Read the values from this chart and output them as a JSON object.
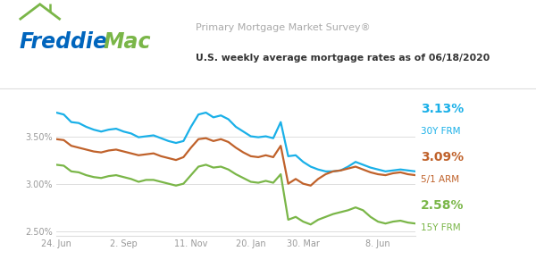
{
  "title_survey": "Primary Mortgage Market Survey®",
  "title_sub": "U.S. weekly average mortgage rates as of 06/18/2020",
  "label_30y_pct": "3.13%",
  "label_30y_name": "30Y FRM",
  "label_5arm_pct": "3.09%",
  "label_5arm_name": "5/1 ARM",
  "label_15y_pct": "2.58%",
  "label_15y_name": "15Y FRM",
  "color_30y": "#1ab0e8",
  "color_5arm": "#c0622b",
  "color_15y": "#7ab648",
  "color_freddie_blue": "#0065bd",
  "color_freddie_green": "#7ab648",
  "color_title_gray": "#aaaaaa",
  "color_subtitle": "#333333",
  "color_grid": "#dddddd",
  "color_tick": "#999999",
  "ylim": [
    2.45,
    3.92
  ],
  "yticks": [
    2.5,
    3.0,
    3.5
  ],
  "ytick_labels": [
    "2.50%",
    "3.00%",
    "3.50%"
  ],
  "x_tick_labels": [
    "24. Jun",
    "2. Sep",
    "11. Nov",
    "20. Jan",
    "30. Mar",
    "8. Jun"
  ],
  "x_tick_positions": [
    0,
    9,
    18,
    26,
    33,
    43
  ],
  "xlim": [
    0,
    48
  ],
  "bg_color": "#ffffff",
  "line_width": 1.6,
  "y_30y": [
    3.75,
    3.73,
    3.65,
    3.64,
    3.6,
    3.57,
    3.55,
    3.57,
    3.58,
    3.55,
    3.53,
    3.49,
    3.5,
    3.51,
    3.48,
    3.45,
    3.43,
    3.45,
    3.6,
    3.73,
    3.75,
    3.7,
    3.72,
    3.68,
    3.6,
    3.55,
    3.5,
    3.49,
    3.5,
    3.48,
    3.65,
    3.29,
    3.3,
    3.23,
    3.18,
    3.15,
    3.13,
    3.13,
    3.14,
    3.18,
    3.23,
    3.2,
    3.17,
    3.15,
    3.13,
    3.14,
    3.15,
    3.14,
    3.13
  ],
  "y_5arm": [
    3.47,
    3.46,
    3.4,
    3.38,
    3.36,
    3.34,
    3.33,
    3.35,
    3.36,
    3.34,
    3.32,
    3.3,
    3.31,
    3.32,
    3.29,
    3.27,
    3.25,
    3.28,
    3.38,
    3.47,
    3.48,
    3.45,
    3.47,
    3.44,
    3.38,
    3.33,
    3.29,
    3.28,
    3.3,
    3.28,
    3.4,
    3.0,
    3.05,
    3.0,
    2.98,
    3.05,
    3.1,
    3.13,
    3.14,
    3.16,
    3.18,
    3.15,
    3.12,
    3.1,
    3.09,
    3.11,
    3.12,
    3.1,
    3.09
  ],
  "y_15y": [
    3.2,
    3.19,
    3.13,
    3.12,
    3.09,
    3.07,
    3.06,
    3.08,
    3.09,
    3.07,
    3.05,
    3.02,
    3.04,
    3.04,
    3.02,
    3.0,
    2.98,
    3.0,
    3.09,
    3.18,
    3.2,
    3.17,
    3.18,
    3.15,
    3.1,
    3.06,
    3.02,
    3.01,
    3.03,
    3.01,
    3.1,
    2.62,
    2.65,
    2.6,
    2.57,
    2.62,
    2.65,
    2.68,
    2.7,
    2.72,
    2.75,
    2.72,
    2.65,
    2.6,
    2.58,
    2.6,
    2.61,
    2.59,
    2.58
  ]
}
